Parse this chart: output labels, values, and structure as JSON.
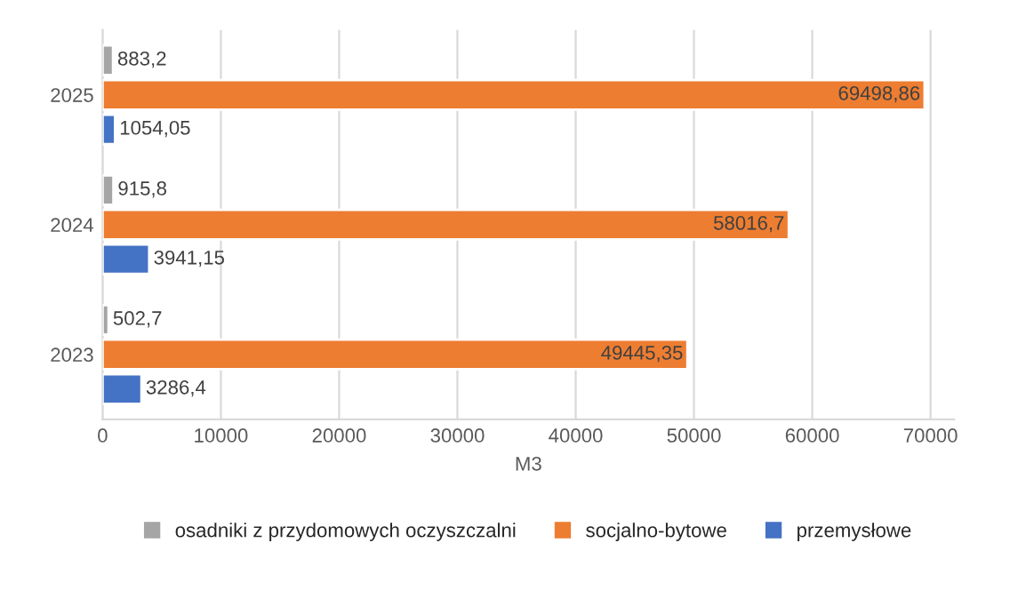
{
  "chart_data": {
    "type": "bar",
    "orientation": "horizontal",
    "categories": [
      "2025",
      "2024",
      "2023"
    ],
    "series": [
      {
        "name": "osadniki z przydomowych oczyszczalni",
        "color": "#a5a5a5",
        "values": [
          883.2,
          915.8,
          502.7
        ],
        "value_labels": [
          "883,2",
          "915,8",
          "502,7"
        ]
      },
      {
        "name": "socjalno-bytowe",
        "color": "#ed7d31",
        "values": [
          69498.86,
          58016.7,
          49445.35
        ],
        "value_labels": [
          "69498,86",
          "58016,7",
          "49445,35"
        ]
      },
      {
        "name": "przemysłowe",
        "color": "#4472c4",
        "values": [
          1054.05,
          3941.15,
          3286.4
        ],
        "value_labels": [
          "1054,05",
          "3941,15",
          "3286,4"
        ]
      }
    ],
    "xlabel": "M3",
    "xlim": [
      0,
      72000
    ],
    "xticks": [
      0,
      10000,
      20000,
      30000,
      40000,
      50000,
      60000,
      70000
    ],
    "grid": "x",
    "legend": "bottom"
  }
}
